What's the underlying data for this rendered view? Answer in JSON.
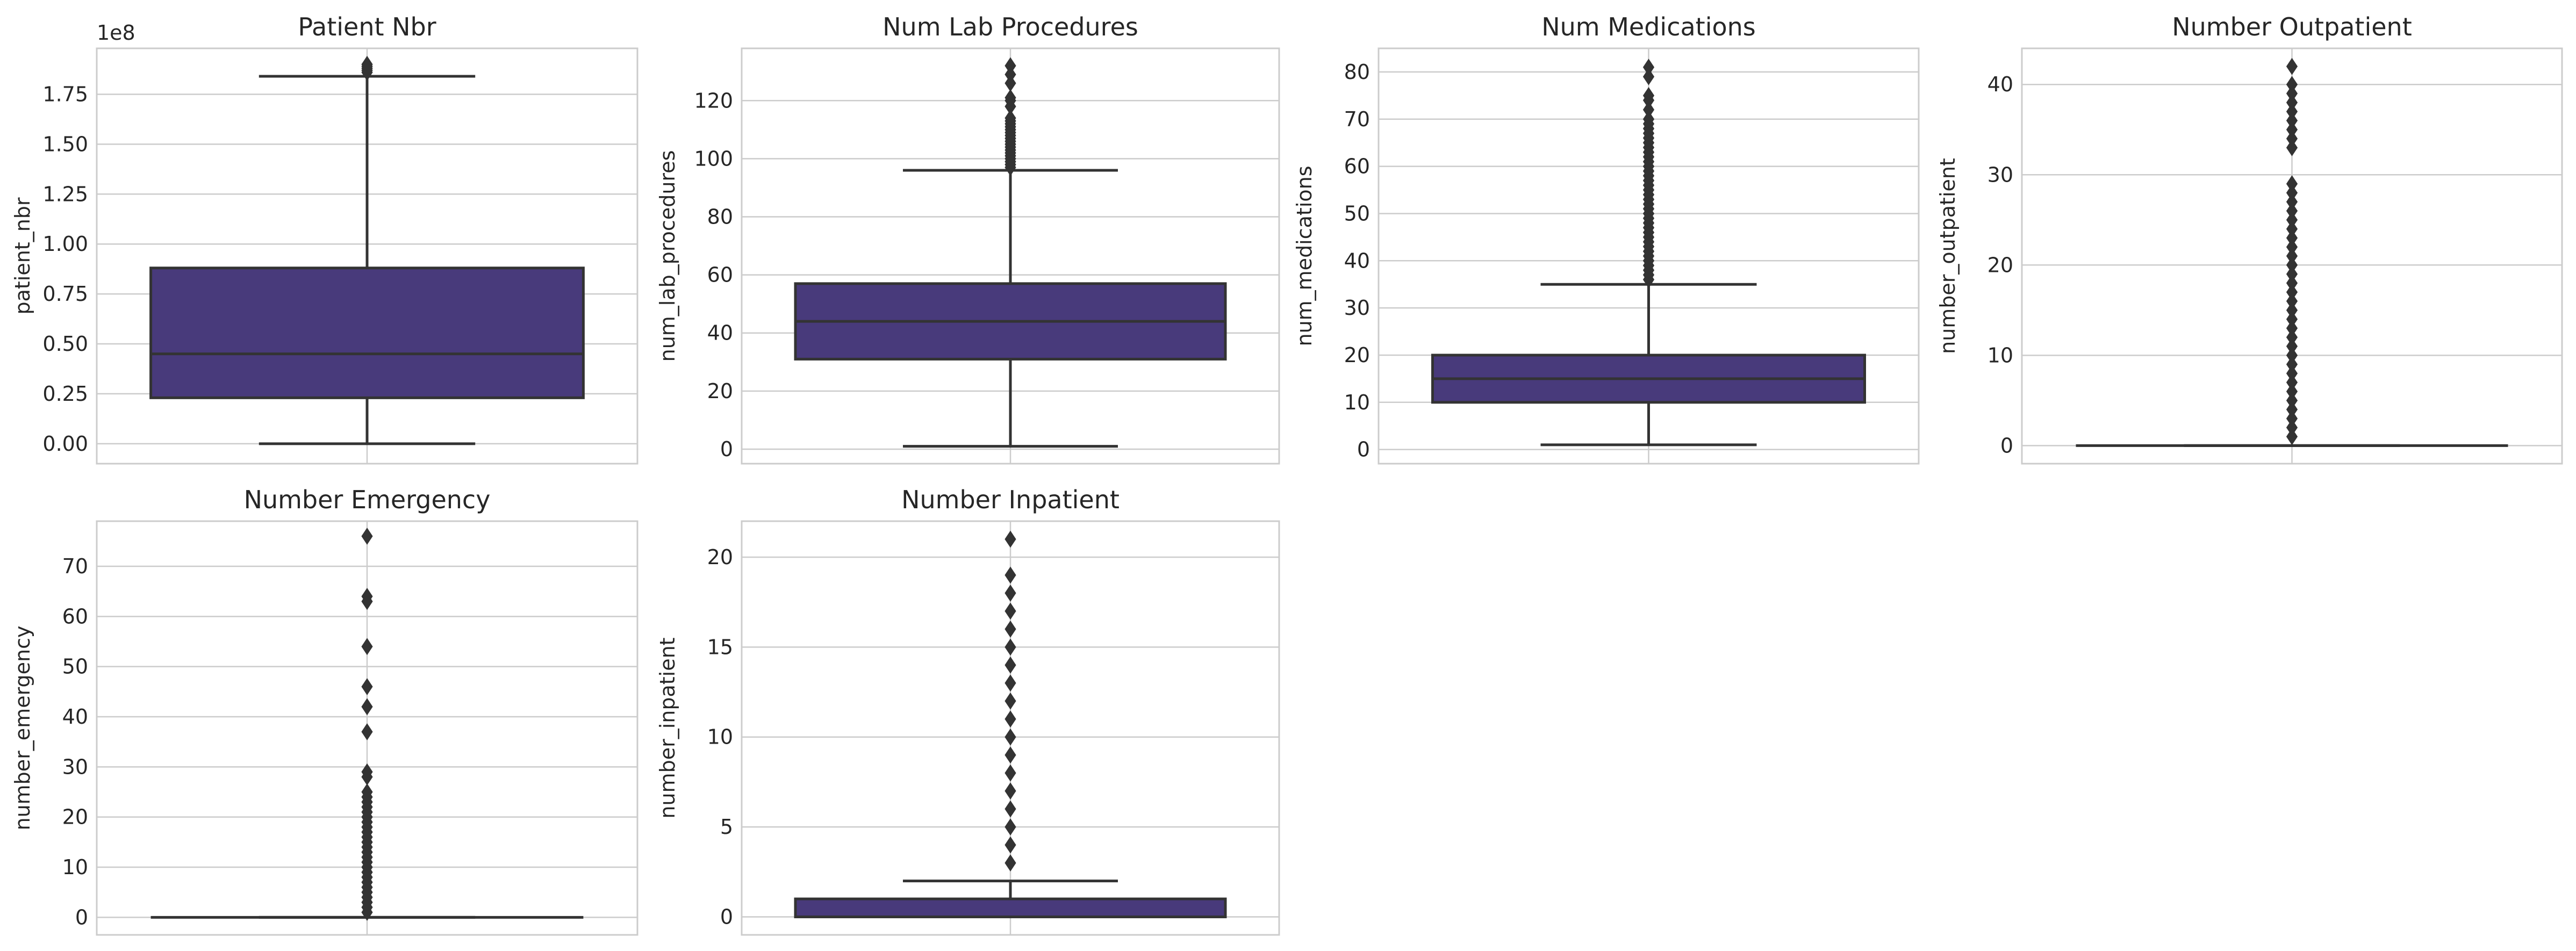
{
  "chart_data": [
    {
      "type": "box",
      "title": "Patient Nbr",
      "ylabel": "patient_nbr",
      "offset_label": "1e8",
      "ylim": [
        -0.1,
        1.98
      ],
      "yticks": [
        0.0,
        0.25,
        0.5,
        0.75,
        1.0,
        1.25,
        1.5,
        1.75
      ],
      "ytick_labels": [
        "0.00",
        "0.25",
        "0.50",
        "0.75",
        "1.00",
        "1.25",
        "1.50",
        "1.75"
      ],
      "box": {
        "whisker_low": 0.0,
        "q1": 0.23,
        "median": 0.45,
        "q3": 0.88,
        "whisker_high": 1.84
      },
      "outliers": [
        1.86,
        1.87,
        1.88,
        1.89,
        1.9
      ]
    },
    {
      "type": "box",
      "title": "Num Lab Procedures",
      "ylabel": "num_lab_procedures",
      "ylim": [
        -5,
        138
      ],
      "yticks": [
        0,
        20,
        40,
        60,
        80,
        100,
        120
      ],
      "ytick_labels": [
        "0",
        "20",
        "40",
        "60",
        "80",
        "100",
        "120"
      ],
      "box": {
        "whisker_low": 1,
        "q1": 31,
        "median": 44,
        "q3": 57,
        "whisker_high": 96
      },
      "outliers": [
        97,
        98,
        99,
        100,
        101,
        102,
        103,
        104,
        105,
        106,
        107,
        108,
        109,
        110,
        111,
        112,
        113,
        114,
        118,
        120,
        121,
        126,
        129,
        132
      ]
    },
    {
      "type": "box",
      "title": "Num Medications",
      "ylabel": "num_medications",
      "ylim": [
        -3,
        85
      ],
      "yticks": [
        0,
        10,
        20,
        30,
        40,
        50,
        60,
        70,
        80
      ],
      "ytick_labels": [
        "0",
        "10",
        "20",
        "30",
        "40",
        "50",
        "60",
        "70",
        "80"
      ],
      "box": {
        "whisker_low": 1,
        "q1": 10,
        "median": 15,
        "q3": 20,
        "whisker_high": 35
      },
      "outliers": [
        36,
        37,
        38,
        39,
        40,
        41,
        42,
        43,
        44,
        45,
        46,
        47,
        48,
        49,
        50,
        51,
        52,
        53,
        54,
        55,
        56,
        57,
        58,
        59,
        60,
        61,
        62,
        63,
        64,
        65,
        66,
        67,
        68,
        69,
        70,
        72,
        74,
        75,
        79,
        81
      ]
    },
    {
      "type": "box",
      "title": "Number Outpatient",
      "ylabel": "number_outpatient",
      "ylim": [
        -2,
        44
      ],
      "yticks": [
        0,
        10,
        20,
        30,
        40
      ],
      "ytick_labels": [
        "0",
        "10",
        "20",
        "30",
        "40"
      ],
      "box": {
        "whisker_low": 0,
        "q1": 0,
        "median": 0,
        "q3": 0,
        "whisker_high": 0
      },
      "outliers": [
        1,
        2,
        3,
        4,
        5,
        6,
        7,
        8,
        9,
        10,
        11,
        12,
        13,
        14,
        15,
        16,
        17,
        18,
        19,
        20,
        21,
        22,
        23,
        24,
        25,
        26,
        27,
        28,
        29,
        33,
        34,
        35,
        36,
        37,
        38,
        39,
        40,
        42
      ]
    },
    {
      "type": "box",
      "title": "Number Emergency",
      "ylabel": "number_emergency",
      "ylim": [
        -3.5,
        79
      ],
      "yticks": [
        0,
        10,
        20,
        30,
        40,
        50,
        60,
        70
      ],
      "ytick_labels": [
        "0",
        "10",
        "20",
        "30",
        "40",
        "50",
        "60",
        "70"
      ],
      "box": {
        "whisker_low": 0,
        "q1": 0,
        "median": 0,
        "q3": 0,
        "whisker_high": 0
      },
      "outliers": [
        1,
        2,
        3,
        4,
        5,
        6,
        7,
        8,
        9,
        10,
        11,
        12,
        13,
        14,
        15,
        16,
        17,
        18,
        19,
        20,
        21,
        22,
        23,
        24,
        25,
        28,
        29,
        37,
        42,
        46,
        54,
        63,
        64,
        76
      ]
    },
    {
      "type": "box",
      "title": "Number Inpatient",
      "ylabel": "number_inpatient",
      "ylim": [
        -1,
        22
      ],
      "yticks": [
        0,
        5,
        10,
        15,
        20
      ],
      "ytick_labels": [
        "0",
        "5",
        "10",
        "15",
        "20"
      ],
      "box": {
        "whisker_low": 0,
        "q1": 0,
        "median": 0,
        "q3": 1,
        "whisker_high": 2
      },
      "outliers": [
        3,
        4,
        5,
        6,
        7,
        8,
        9,
        10,
        11,
        12,
        13,
        14,
        15,
        16,
        17,
        18,
        19,
        21
      ]
    }
  ],
  "colors": {
    "box_fill": "#483a7b",
    "line": "#333333",
    "grid": "#cccccc",
    "frame": "#cccccc",
    "text": "#262626"
  }
}
